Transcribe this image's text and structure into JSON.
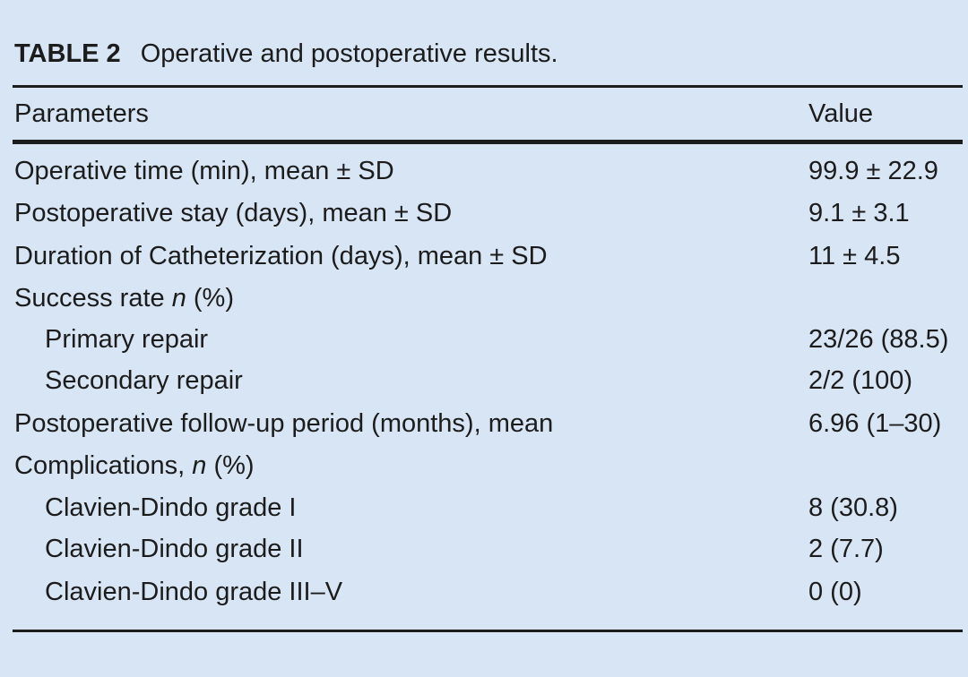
{
  "caption": {
    "label": "TABLE 2",
    "title": "Operative and postoperative results."
  },
  "table": {
    "headers": {
      "param": "Parameters",
      "value": "Value"
    },
    "rows": [
      {
        "param": "Operative time (min), mean ± SD",
        "value": "99.9 ± 22.9"
      },
      {
        "param": "Postoperative stay (days), mean ± SD",
        "value": "9.1 ± 3.1"
      },
      {
        "param": "Duration of Catheterization (days), mean ± SD",
        "value": "11 ± 4.5"
      },
      {
        "param_prefix": "Success rate ",
        "param_italic": "n",
        "param_suffix": " (%)",
        "value": ""
      },
      {
        "param": "Primary repair",
        "value": "23/26 (88.5)"
      },
      {
        "param": "Secondary repair",
        "value": "2/2 (100)"
      },
      {
        "param": "Postoperative follow-up period (months), mean",
        "value": "6.96 (1–30)"
      },
      {
        "param_prefix": "Complications, ",
        "param_italic": "n",
        "param_suffix": " (%)",
        "value": ""
      },
      {
        "param": "Clavien-Dindo grade I",
        "value": "8 (30.8)"
      },
      {
        "param": "Clavien-Dindo grade II",
        "value": "2 (7.7)"
      },
      {
        "param": "Clavien-Dindo grade III–V",
        "value": "0 (0)"
      }
    ]
  }
}
